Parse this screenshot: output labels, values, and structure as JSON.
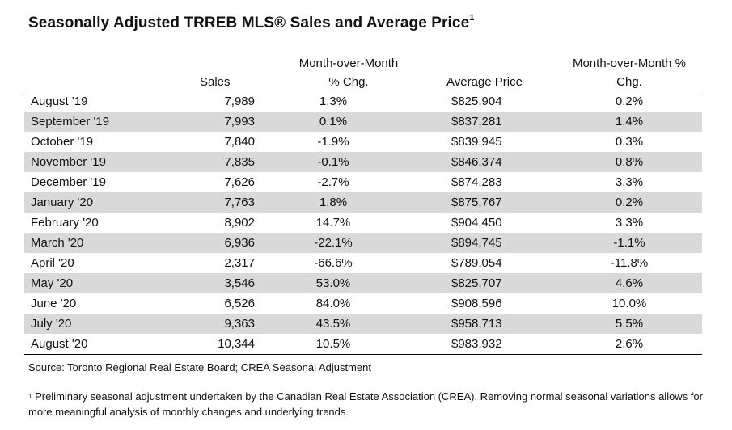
{
  "title": "Seasonally Adjusted TRREB MLS® Sales and Average Price",
  "title_superscript": "1",
  "headers": {
    "sales": "Sales",
    "mom_line1": "Month-over-Month",
    "mom_line2": "% Chg.",
    "avg_price": "Average Price",
    "price_mom_line1": "Month-over-Month %",
    "price_mom_line2": "Chg."
  },
  "rows": [
    {
      "month": "August '19",
      "sales": "7,989",
      "sales_chg": "1.3%",
      "price": "$825,904",
      "price_chg": "0.2%"
    },
    {
      "month": "September '19",
      "sales": "7,993",
      "sales_chg": "0.1%",
      "price": "$837,281",
      "price_chg": "1.4%"
    },
    {
      "month": "October '19",
      "sales": "7,840",
      "sales_chg": "-1.9%",
      "price": "$839,945",
      "price_chg": "0.3%"
    },
    {
      "month": "November '19",
      "sales": "7,835",
      "sales_chg": "-0.1%",
      "price": "$846,374",
      "price_chg": "0.8%"
    },
    {
      "month": "December '19",
      "sales": "7,626",
      "sales_chg": "-2.7%",
      "price": "$874,283",
      "price_chg": "3.3%"
    },
    {
      "month": "January '20",
      "sales": "7,763",
      "sales_chg": "1.8%",
      "price": "$875,767",
      "price_chg": "0.2%"
    },
    {
      "month": "February '20",
      "sales": "8,902",
      "sales_chg": "14.7%",
      "price": "$904,450",
      "price_chg": "3.3%"
    },
    {
      "month": "March '20",
      "sales": "6,936",
      "sales_chg": "-22.1%",
      "price": "$894,745",
      "price_chg": "-1.1%"
    },
    {
      "month": "April '20",
      "sales": "2,317",
      "sales_chg": "-66.6%",
      "price": "$789,054",
      "price_chg": "-11.8%"
    },
    {
      "month": "May '20",
      "sales": "3,546",
      "sales_chg": "53.0%",
      "price": "$825,707",
      "price_chg": "4.6%"
    },
    {
      "month": "June '20",
      "sales": "6,526",
      "sales_chg": "84.0%",
      "price": "$908,596",
      "price_chg": "10.0%"
    },
    {
      "month": "July '20",
      "sales": "9,363",
      "sales_chg": "43.5%",
      "price": "$958,713",
      "price_chg": "5.5%"
    },
    {
      "month": "August '20",
      "sales": "10,344",
      "sales_chg": "10.5%",
      "price": "$983,932",
      "price_chg": "2.6%"
    }
  ],
  "source": "Source: Toronto Regional Real Estate Board; CREA Seasonal Adjustment",
  "footnote_marker": "1",
  "footnote": " Preliminary seasonal adjustment undertaken by the Canadian Real Estate Association (CREA).  Removing normal seasonal variations allows for more meaningful analysis of monthly changes and underlying trends.",
  "colors": {
    "shaded_row": "#d9d9d9",
    "rule": "#000000"
  }
}
